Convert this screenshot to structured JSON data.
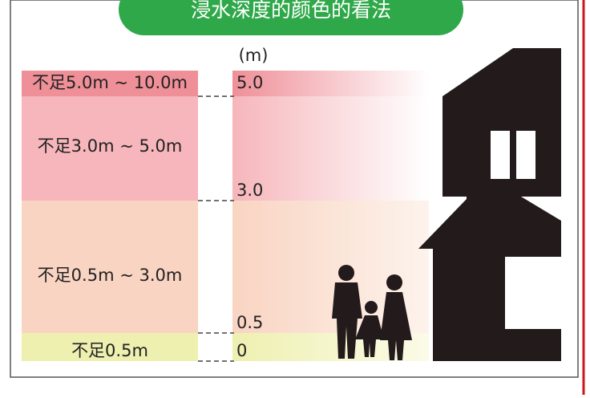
{
  "header": {
    "title": "浸水深度的颜色的看法"
  },
  "scale": {
    "unit": "(m)",
    "ticks": [
      "5.0",
      "3.0",
      "0.5",
      "0"
    ]
  },
  "bands": [
    {
      "label": "不足5.0m ~ 10.0m"
    },
    {
      "label": "不足3.0m ~ 5.0m"
    },
    {
      "label": "不足0.5m ~ 3.0m"
    },
    {
      "label": "不足0.5m"
    }
  ]
}
